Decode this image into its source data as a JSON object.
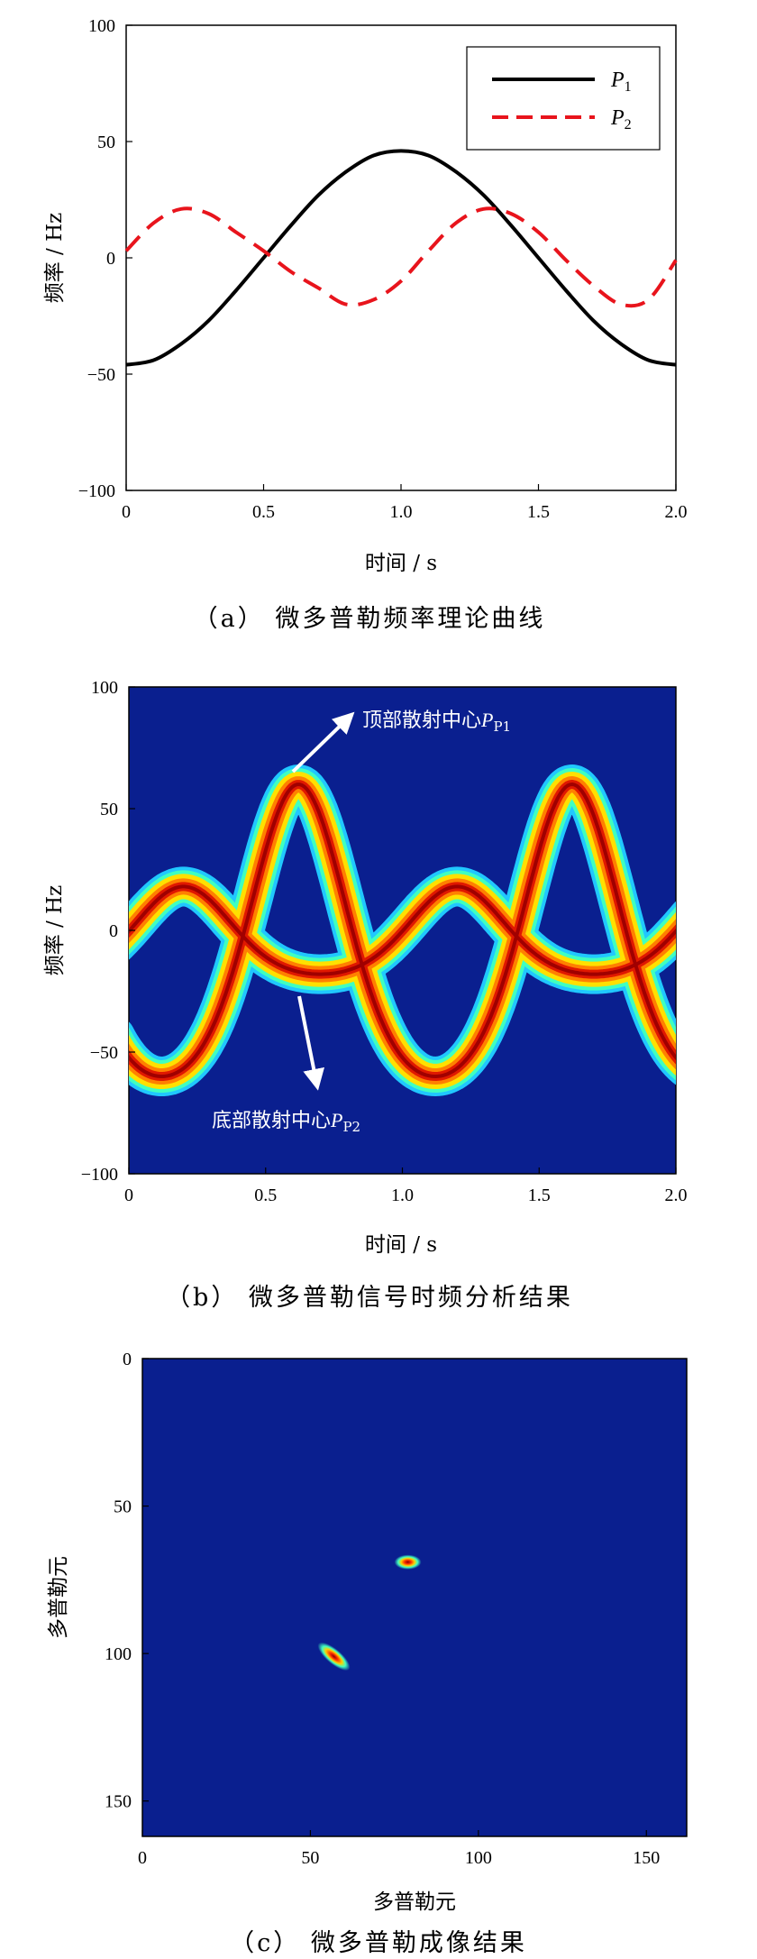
{
  "chart_data": [
    {
      "panel": "a",
      "type": "line",
      "caption": "（a） 微多普勒频率理论曲线",
      "xlabel": "时间 / s",
      "ylabel": "频率 / Hz",
      "xlim": [
        0,
        2.0
      ],
      "ylim": [
        -100,
        100
      ],
      "xticks": [
        "0",
        "0.5",
        "1.0",
        "1.5",
        "2.0"
      ],
      "yticks": [
        "100",
        "50",
        "0",
        "-50",
        "-100"
      ],
      "legend_position": "top-right",
      "series": [
        {
          "name": "P1",
          "color": "#000000",
          "style": "solid",
          "x": [
            0,
            0.1,
            0.2,
            0.3,
            0.4,
            0.5,
            0.6,
            0.7,
            0.8,
            0.9,
            1.0,
            1.1,
            1.2,
            1.3,
            1.4,
            1.5,
            1.6,
            1.7,
            1.8,
            1.9,
            2.0
          ],
          "y": [
            -46,
            -44,
            -37,
            -27,
            -14,
            0,
            14,
            27,
            37,
            44,
            46,
            44,
            37,
            27,
            14,
            0,
            -14,
            -27,
            -37,
            -44,
            -46
          ]
        },
        {
          "name": "P2",
          "color": "#e8141c",
          "style": "dashed",
          "x": [
            0,
            0.1,
            0.2,
            0.3,
            0.4,
            0.5,
            0.6,
            0.7,
            0.8,
            0.9,
            1.0,
            1.1,
            1.2,
            1.3,
            1.4,
            1.5,
            1.6,
            1.7,
            1.8,
            1.9,
            2.0
          ],
          "y": [
            3,
            15,
            21,
            19,
            11,
            3,
            -6,
            -13,
            -20,
            -18,
            -10,
            3,
            15,
            21,
            19,
            11,
            -1,
            -12,
            -20,
            -18,
            -1
          ]
        }
      ]
    },
    {
      "panel": "b",
      "type": "heatmap",
      "caption": "（b） 微多普勒信号时频分析结果",
      "xlabel": "时间 / s",
      "ylabel": "频率 / Hz",
      "xlim": [
        0,
        2.0
      ],
      "ylim": [
        -100,
        100
      ],
      "xticks": [
        "0",
        "0.5",
        "1.0",
        "1.5",
        "2.0"
      ],
      "yticks": [
        "100",
        "50",
        "0",
        "-50",
        "-100"
      ],
      "annotations": [
        {
          "text": "顶部散射中心",
          "sub": "P1"
        },
        {
          "text": "底部散射中心",
          "sub": "P2"
        }
      ],
      "colormap": "jet",
      "background_color": "#0a1f8f",
      "tracks": [
        {
          "name": "P1",
          "center": 0,
          "amplitude": 60,
          "period": 1.0,
          "phase_peak": 0.62
        },
        {
          "name": "P2",
          "center": 0,
          "amplitude": 18,
          "period": 1.0,
          "phase_peak": 0.2
        }
      ]
    },
    {
      "panel": "c",
      "type": "heatmap",
      "caption": "（c） 微多普勒成像结果",
      "xlabel": "多普勒元",
      "ylabel": "多普勒元",
      "xlim": [
        0,
        162
      ],
      "ylim": [
        0,
        162
      ],
      "xticks": [
        "0",
        "50",
        "100",
        "150"
      ],
      "yticks": [
        "0",
        "50",
        "100",
        "150"
      ],
      "colormap": "jet",
      "background_color": "#0a1f8f",
      "spots": [
        {
          "x": 79,
          "y": 69,
          "rx": 4,
          "ry": 2.5,
          "angle": 0
        },
        {
          "x": 57,
          "y": 101,
          "rx": 6,
          "ry": 2.5,
          "angle": 40
        }
      ]
    }
  ]
}
